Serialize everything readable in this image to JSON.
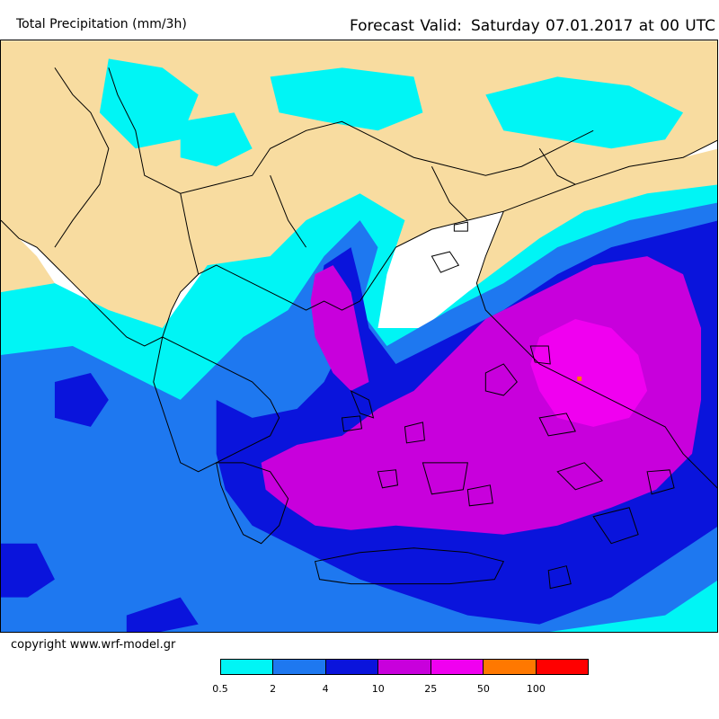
{
  "header": {
    "title": "Total Precipitation (mm/3h)",
    "valid_prefix": "Forecast Valid:",
    "valid_time": "Saturday 07.01.2017 at 00 UTC"
  },
  "footer": {
    "copyright": "copyright www.wrf-model.gr"
  },
  "legend": {
    "colors": [
      "#00f5f5",
      "#1e78f0",
      "#0a14dc",
      "#c800dc",
      "#f000f0",
      "#ff7800",
      "#ff0000"
    ],
    "labels": [
      "0.5",
      "2",
      "4",
      "10",
      "25",
      "50",
      "100"
    ]
  },
  "map": {
    "land_color": "#f8dca0",
    "border_color": "#000000"
  }
}
